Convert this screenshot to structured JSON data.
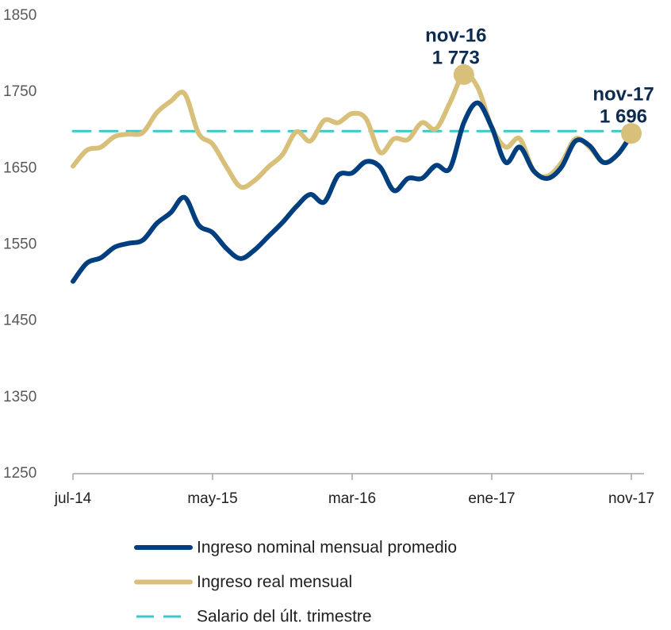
{
  "chart_data": {
    "type": "line",
    "categories": [
      "jul-14",
      null,
      null,
      null,
      null,
      null,
      null,
      null,
      null,
      null,
      "may-15",
      null,
      null,
      null,
      null,
      null,
      null,
      null,
      null,
      null,
      "mar-16",
      null,
      null,
      null,
      null,
      null,
      null,
      null,
      null,
      null,
      "ene-17",
      null,
      null,
      null,
      null,
      null,
      null,
      null,
      null,
      null,
      "nov-17"
    ],
    "series": [
      {
        "name": "Ingreso nominal mensual promedio",
        "color": "#003f7f",
        "dash": false,
        "values": [
          1502,
          1526,
          1533,
          1547,
          1552,
          1556,
          1578,
          1592,
          1612,
          1576,
          1566,
          1545,
          1532,
          1543,
          1561,
          1579,
          1600,
          1616,
          1606,
          1641,
          1644,
          1659,
          1652,
          1621,
          1637,
          1637,
          1654,
          1650,
          1710,
          1736,
          1704,
          1658,
          1678,
          1647,
          1637,
          1652,
          1686,
          1680,
          1658,
          1668,
          1694
        ]
      },
      {
        "name": "Ingreso real mensual",
        "color": "#d8c07a",
        "dash": false,
        "values": [
          1653,
          1674,
          1678,
          1692,
          1695,
          1697,
          1723,
          1738,
          1748,
          1696,
          1682,
          1652,
          1626,
          1634,
          1652,
          1668,
          1698,
          1686,
          1713,
          1710,
          1722,
          1715,
          1671,
          1689,
          1688,
          1710,
          1702,
          1736,
          1773,
          1756,
          1704,
          1678,
          1689,
          1647,
          1640,
          1658,
          1689,
          1678,
          1658,
          1668,
          1696
        ],
        "point_labels": [
          null,
          null,
          null,
          null,
          null,
          null,
          null,
          null,
          null,
          null,
          null,
          null,
          null,
          null,
          null,
          null,
          null,
          null,
          null,
          null,
          null,
          null,
          null,
          null,
          null,
          null,
          null,
          null,
          "nov-16",
          null,
          null,
          null,
          null,
          null,
          null,
          null,
          null,
          null,
          null,
          null,
          "nov-17"
        ],
        "value_labels": [
          null,
          null,
          null,
          null,
          null,
          null,
          null,
          null,
          null,
          null,
          null,
          null,
          null,
          null,
          null,
          null,
          null,
          null,
          null,
          null,
          null,
          null,
          null,
          null,
          null,
          null,
          null,
          null,
          "1 773",
          null,
          null,
          null,
          null,
          null,
          null,
          null,
          null,
          null,
          null,
          null,
          "1 696"
        ]
      },
      {
        "name": "Salario del últ. trimestre",
        "color": "#3cc8c8",
        "dash": true,
        "values": [
          1699,
          1699,
          1699,
          1699,
          1699,
          1699,
          1699,
          1699,
          1699,
          1699,
          1699,
          1699,
          1699,
          1699,
          1699,
          1699,
          1699,
          1699,
          1699,
          1699,
          1699,
          1699,
          1699,
          1699,
          1699,
          1699,
          1699,
          1699,
          1699,
          1699,
          1699,
          1699,
          1699,
          1699,
          1699,
          1699,
          1699,
          1699,
          1699,
          1699,
          1699
        ]
      }
    ],
    "ylim": [
      1250,
      1850
    ],
    "yticks": [
      1250,
      1350,
      1450,
      1550,
      1650,
      1750,
      1850
    ],
    "grid": false,
    "legend": "bottom"
  }
}
